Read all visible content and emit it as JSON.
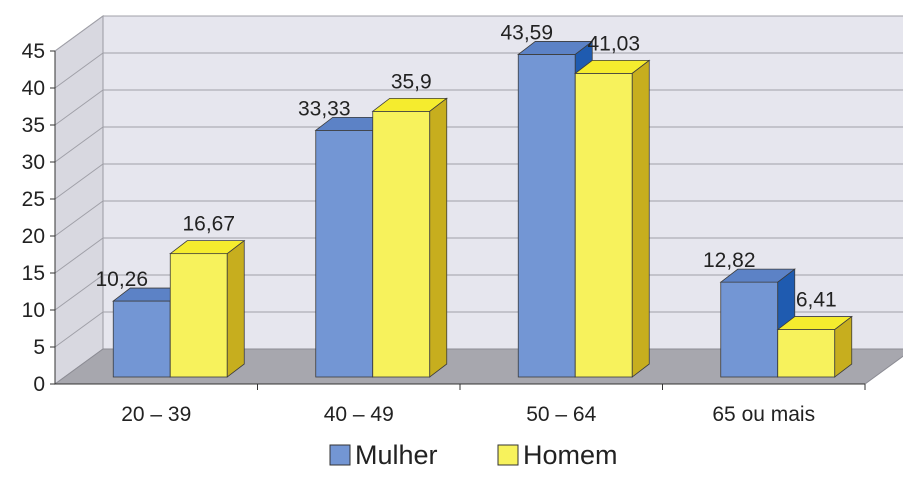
{
  "chart_data": {
    "type": "bar",
    "categories": [
      "20 – 39",
      "40 – 49",
      "50 – 64",
      "65 ou mais"
    ],
    "series": [
      {
        "name": "Mulher",
        "values": [
          10.26,
          33.33,
          43.59,
          12.82
        ],
        "labels": [
          "10,26",
          "33,33",
          "43,59",
          "12,82"
        ]
      },
      {
        "name": "Homem",
        "values": [
          16.67,
          35.9,
          41.03,
          6.41
        ],
        "labels": [
          "16,67",
          "35,9",
          "41,03",
          "6,41"
        ]
      }
    ],
    "ylim": [
      0,
      45
    ],
    "yticks": [
      "0",
      "5",
      "10",
      "15",
      "20",
      "25",
      "30",
      "35",
      "40",
      "45"
    ],
    "grid": true,
    "legend_position": "bottom",
    "colors": {
      "Mulher": {
        "front": "#7396D4",
        "top": "#5C82C6",
        "side": "#1F5BB0"
      },
      "Homem": {
        "front": "#F7F25C",
        "top": "#F5EC2E",
        "side": "#C7AE1E"
      },
      "back_wall": "#E6E6EE",
      "floor": "#A7A7AE",
      "gridline": "#A0A0A8"
    }
  }
}
